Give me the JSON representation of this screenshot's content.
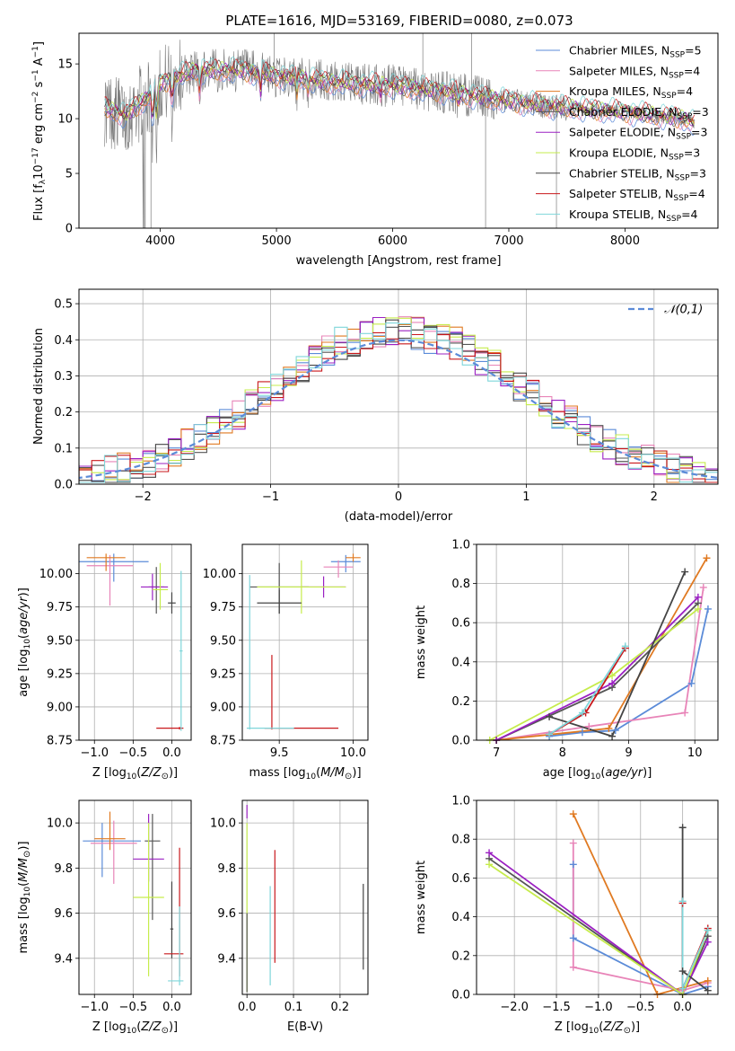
{
  "figure_title": "PLATE=1616, MJD=53169, FIBERID=0080, z=0.073",
  "model_colors": {
    "Chabrier MILES": "#5b8bd8",
    "Salpeter MILES": "#e884b8",
    "Kroupa MILES": "#e07a22",
    "Chabrier ELODIE": "#555555",
    "Salpeter ELODIE": "#9b20c2",
    "Kroupa ELODIE": "#c6ec4c",
    "Chabrier STELIB": "#444444",
    "Salpeter STELIB": "#c9181c",
    "Kroupa STELIB": "#7fd6da",
    "data": "#7a7a7a"
  },
  "chart_data": [
    {
      "id": "spectrum",
      "type": "line",
      "xlabel": "wavelength [Angstrom, rest frame]",
      "ylabel": "Flux [f_λ 10^-17 erg cm^-2 s^-1 A^-1]",
      "xlim": [
        3300,
        8800
      ],
      "ylim": [
        0,
        17.8
      ],
      "xticks": [
        4000,
        5000,
        6000,
        7000,
        8000
      ],
      "yticks": [
        0,
        5,
        10,
        15
      ],
      "grid": false,
      "legend_position": "top-right",
      "legend": [
        {
          "model": "Chabrier MILES",
          "nssp": "5"
        },
        {
          "model": "Salpeter MILES",
          "nssp": "4"
        },
        {
          "model": "Kroupa MILES",
          "nssp": "4"
        },
        {
          "model": "Chabrier ELODIE",
          "nssp": "3"
        },
        {
          "model": "Salpeter ELODIE",
          "nssp": "3"
        },
        {
          "model": "Kroupa ELODIE",
          "nssp": "3"
        },
        {
          "model": "Chabrier STELIB",
          "nssp": "3"
        },
        {
          "model": "Salpeter STELIB",
          "nssp": "4"
        },
        {
          "model": "Kroupa STELIB",
          "nssp": "4"
        }
      ],
      "continuum_points": [
        [
          3500,
          11.0
        ],
        [
          3700,
          10.3
        ],
        [
          3900,
          12.0
        ],
        [
          4000,
          13.2
        ],
        [
          4300,
          14.4
        ],
        [
          4700,
          14.4
        ],
        [
          5000,
          13.9
        ],
        [
          5500,
          13.3
        ],
        [
          6000,
          13.0
        ],
        [
          6500,
          12.4
        ],
        [
          6800,
          11.9
        ],
        [
          7200,
          11.3
        ],
        [
          7500,
          11.0
        ],
        [
          8000,
          10.6
        ],
        [
          8500,
          10.0
        ],
        [
          8600,
          9.5
        ]
      ]
    },
    {
      "id": "residual-distribution",
      "type": "line",
      "xlabel": "(data-model)/error",
      "ylabel": "Normed distribution",
      "xlim": [
        -2.5,
        2.5
      ],
      "ylim": [
        0,
        0.54
      ],
      "xticks": [
        -2,
        -1,
        0,
        1,
        2
      ],
      "yticks": [
        0.0,
        0.1,
        0.2,
        0.3,
        0.4,
        0.5
      ],
      "grid": true,
      "legend_position": "top-right",
      "legend_label": "𝒩(0,1)",
      "normal_curve_color": "#5b8bd8"
    },
    {
      "id": "age-vs-Z",
      "type": "scatter",
      "xlabel": "Z [log10(Z/Z⊙)]",
      "ylabel": "age [log10(age/yr)]",
      "xlim": [
        -1.2,
        0.25
      ],
      "ylim": [
        8.75,
        10.22
      ],
      "xticks": [
        -1.0,
        -0.5,
        0.0
      ],
      "yticks": [
        8.75,
        9.0,
        9.25,
        9.5,
        9.75,
        10.0
      ],
      "grid": true,
      "points": [
        {
          "model": "Chabrier MILES",
          "x": -0.75,
          "y": 10.09,
          "xerr": [
            0.5,
            0.45
          ],
          "yerr": [
            0.15,
            0.06
          ]
        },
        {
          "model": "Salpeter MILES",
          "x": -0.8,
          "y": 10.06,
          "xerr": [
            0.3,
            0.3
          ],
          "yerr": [
            0.3,
            0.08
          ]
        },
        {
          "model": "Kroupa MILES",
          "x": -0.85,
          "y": 10.12,
          "xerr": [
            0.25,
            0.25
          ],
          "yerr": [
            0.1,
            0.03
          ]
        },
        {
          "model": "Chabrier ELODIE",
          "x": -0.2,
          "y": 9.9,
          "xerr": [
            0.1,
            0.1
          ],
          "yerr": [
            0.2,
            0.15
          ]
        },
        {
          "model": "Salpeter ELODIE",
          "x": -0.25,
          "y": 9.9,
          "xerr": [
            0.15,
            0.2
          ],
          "yerr": [
            0.1,
            0.1
          ]
        },
        {
          "model": "Kroupa ELODIE",
          "x": -0.15,
          "y": 9.88,
          "xerr": [
            0.1,
            0.1
          ],
          "yerr": [
            0.15,
            0.2
          ]
        },
        {
          "model": "Chabrier STELIB",
          "x": 0.0,
          "y": 9.78,
          "xerr": [
            0.05,
            0.05
          ],
          "yerr": [
            0.08,
            0.08
          ]
        },
        {
          "model": "Salpeter STELIB",
          "x": 0.1,
          "y": 8.84,
          "xerr": [
            0.3,
            0.05
          ],
          "yerr": [
            0.01,
            0.01
          ]
        },
        {
          "model": "Kroupa STELIB",
          "x": 0.12,
          "y": 9.42,
          "xerr": [
            0.02,
            0.02
          ],
          "yerr": [
            0.6,
            0.6
          ]
        }
      ]
    },
    {
      "id": "age-vs-mass",
      "type": "scatter",
      "xlabel": "mass [log10(M/M⊙)]",
      "ylabel": "",
      "xlim": [
        9.25,
        10.1
      ],
      "ylim": [
        8.75,
        10.22
      ],
      "xticks": [
        9.5,
        10.0
      ],
      "yticks": [
        8.75,
        9.0,
        9.25,
        9.5,
        9.75,
        10.0
      ],
      "grid": true,
      "points": [
        {
          "model": "Chabrier MILES",
          "x": 9.95,
          "y": 10.09,
          "xerr": [
            0.1,
            0.1
          ],
          "yerr": [
            0.08,
            0.05
          ]
        },
        {
          "model": "Salpeter MILES",
          "x": 9.9,
          "y": 10.05,
          "xerr": [
            0.1,
            0.1
          ],
          "yerr": [
            0.08,
            0.05
          ]
        },
        {
          "model": "Kroupa MILES",
          "x": 10.0,
          "y": 10.12,
          "xerr": [
            0.05,
            0.05
          ],
          "yerr": [
            0.03,
            0.03
          ]
        },
        {
          "model": "Chabrier ELODIE",
          "x": 9.5,
          "y": 9.9,
          "xerr": [
            0.2,
            0.2
          ],
          "yerr": [
            0.2,
            0.18
          ]
        },
        {
          "model": "Salpeter ELODIE",
          "x": 9.8,
          "y": 9.9,
          "xerr": [
            0.15,
            0.15
          ],
          "yerr": [
            0.08,
            0.08
          ]
        },
        {
          "model": "Kroupa ELODIE",
          "x": 9.65,
          "y": 9.9,
          "xerr": [
            0.3,
            0.3
          ],
          "yerr": [
            0.2,
            0.2
          ]
        },
        {
          "model": "Chabrier STELIB",
          "x": 9.5,
          "y": 9.78,
          "xerr": [
            0.15,
            0.15
          ],
          "yerr": [
            0.08,
            0.1
          ]
        },
        {
          "model": "Salpeter STELIB",
          "x": 9.45,
          "y": 8.84,
          "xerr": [
            0.05,
            0.45
          ],
          "yerr": [
            0.01,
            0.55
          ]
        },
        {
          "model": "Kroupa STELIB",
          "x": 9.3,
          "y": 8.84,
          "xerr": [
            0.02,
            0.3
          ],
          "yerr": [
            0.01,
            1.15
          ]
        }
      ]
    },
    {
      "id": "mass-weight-vs-age",
      "type": "line",
      "xlabel": "age [log10(age/yr)]",
      "ylabel": "mass weight",
      "xlim": [
        6.7,
        10.35
      ],
      "ylim": [
        0,
        1.0
      ],
      "xticks": [
        7,
        8,
        9,
        10
      ],
      "yticks": [
        0.0,
        0.2,
        0.4,
        0.6,
        0.8,
        1.0
      ],
      "grid": true,
      "series": [
        {
          "model": "Chabrier MILES",
          "points": [
            [
              7.8,
              0.02
            ],
            [
              8.3,
              0.04
            ],
            [
              8.8,
              0.05
            ],
            [
              9.95,
              0.29
            ],
            [
              10.2,
              0.67
            ]
          ]
        },
        {
          "model": "Salpeter MILES",
          "points": [
            [
              7.0,
              0.0
            ],
            [
              8.4,
              0.07
            ],
            [
              9.85,
              0.14
            ],
            [
              10.13,
              0.78
            ]
          ]
        },
        {
          "model": "Kroupa MILES",
          "points": [
            [
              7.0,
              0.0
            ],
            [
              8.7,
              0.06
            ],
            [
              10.18,
              0.93
            ]
          ]
        },
        {
          "model": "Chabrier ELODIE",
          "points": [
            [
              7.0,
              0.0
            ],
            [
              8.75,
              0.27
            ],
            [
              10.05,
              0.7
            ]
          ]
        },
        {
          "model": "Salpeter ELODIE",
          "points": [
            [
              7.0,
              0.0
            ],
            [
              8.75,
              0.29
            ],
            [
              10.05,
              0.73
            ]
          ]
        },
        {
          "model": "Kroupa ELODIE",
          "points": [
            [
              6.9,
              0.0
            ],
            [
              8.75,
              0.33
            ],
            [
              10.05,
              0.67
            ]
          ]
        },
        {
          "model": "Chabrier STELIB",
          "points": [
            [
              7.8,
              0.12
            ],
            [
              8.75,
              0.02
            ],
            [
              9.85,
              0.86
            ]
          ]
        },
        {
          "model": "Salpeter STELIB",
          "points": [
            [
              7.8,
              0.03
            ],
            [
              8.35,
              0.14
            ],
            [
              8.95,
              0.47
            ]
          ]
        },
        {
          "model": "Kroupa STELIB",
          "points": [
            [
              7.8,
              0.03
            ],
            [
              8.3,
              0.14
            ],
            [
              8.95,
              0.48
            ]
          ]
        }
      ]
    },
    {
      "id": "mass-vs-Z",
      "type": "scatter",
      "xlabel": "Z [log10(Z/Z⊙)]",
      "ylabel": "mass [log10(M/M⊙)]",
      "xlim": [
        -1.2,
        0.25
      ],
      "ylim": [
        9.24,
        10.1
      ],
      "xticks": [
        -1.0,
        -0.5,
        0.0
      ],
      "yticks": [
        9.4,
        9.6,
        9.8,
        10.0
      ],
      "grid": true,
      "points": [
        {
          "model": "Chabrier MILES",
          "x": -0.9,
          "y": 9.92,
          "xerr": [
            0.25,
            0.5
          ],
          "yerr": [
            0.16,
            0.08
          ]
        },
        {
          "model": "Salpeter MILES",
          "x": -0.75,
          "y": 9.91,
          "xerr": [
            0.3,
            0.3
          ],
          "yerr": [
            0.18,
            0.1
          ]
        },
        {
          "model": "Kroupa MILES",
          "x": -0.8,
          "y": 9.93,
          "xerr": [
            0.2,
            0.2
          ],
          "yerr": [
            0.05,
            0.12
          ]
        },
        {
          "model": "Chabrier ELODIE",
          "x": -0.25,
          "y": 9.92,
          "xerr": [
            0.1,
            0.1
          ],
          "yerr": [
            0.35,
            0.12
          ]
        },
        {
          "model": "Salpeter ELODIE",
          "x": -0.3,
          "y": 9.84,
          "xerr": [
            0.2,
            0.2
          ],
          "yerr": [
            0.1,
            0.2
          ]
        },
        {
          "model": "Kroupa ELODIE",
          "x": -0.3,
          "y": 9.67,
          "xerr": [
            0.2,
            0.2
          ],
          "yerr": [
            0.35,
            0.33
          ]
        },
        {
          "model": "Chabrier STELIB",
          "x": 0.0,
          "y": 9.53,
          "xerr": [
            0.02,
            0.02
          ],
          "yerr": [
            0.13,
            0.21
          ]
        },
        {
          "model": "Salpeter STELIB",
          "x": 0.1,
          "y": 9.42,
          "xerr": [
            0.2,
            0.05
          ],
          "yerr": [
            0.1,
            0.47
          ]
        },
        {
          "model": "Kroupa STELIB",
          "x": 0.1,
          "y": 9.3,
          "xerr": [
            0.15,
            0.05
          ],
          "yerr": [
            0.02,
            0.33
          ]
        }
      ]
    },
    {
      "id": "mass-vs-EBV",
      "type": "scatter",
      "xlabel": "E(B-V)",
      "ylabel": "",
      "xlim": [
        -0.01,
        0.26
      ],
      "ylim": [
        9.24,
        10.1
      ],
      "xticks": [
        0.0,
        0.1,
        0.2
      ],
      "yticks": [
        9.4,
        9.6,
        9.8,
        10.0
      ],
      "grid": true,
      "points": [
        {
          "model": "Salpeter ELODIE",
          "x": 0.0,
          "y": 10.05,
          "xerr": [
            0,
            0
          ],
          "yerr": [
            0.03,
            0.03
          ]
        },
        {
          "model": "Kroupa ELODIE",
          "x": 0.0,
          "y": 9.55,
          "xerr": [
            0,
            0
          ],
          "yerr": [
            0.3,
            0.45
          ]
        },
        {
          "model": "Chabrier ELODIE",
          "x": 0.0,
          "y": 9.3,
          "xerr": [
            0,
            0
          ],
          "yerr": [
            0.05,
            0.3
          ]
        },
        {
          "model": "Kroupa STELIB",
          "x": 0.05,
          "y": 9.5,
          "xerr": [
            0,
            0
          ],
          "yerr": [
            0.22,
            0.22
          ]
        },
        {
          "model": "Salpeter STELIB",
          "x": 0.06,
          "y": 9.63,
          "xerr": [
            0,
            0
          ],
          "yerr": [
            0.25,
            0.25
          ]
        },
        {
          "model": "Chabrier STELIB",
          "x": 0.25,
          "y": 9.54,
          "xerr": [
            0,
            0
          ],
          "yerr": [
            0.19,
            0.19
          ]
        }
      ]
    },
    {
      "id": "mass-weight-vs-Z",
      "type": "line",
      "xlabel": "Z [log10(Z/Z⊙)]",
      "ylabel": "mass weight",
      "xlim": [
        -2.45,
        0.42
      ],
      "ylim": [
        0,
        1.0
      ],
      "xticks": [
        -2.0,
        -1.5,
        -1.0,
        -0.5,
        0.0
      ],
      "yticks": [
        0.0,
        0.2,
        0.4,
        0.6,
        0.8,
        1.0
      ],
      "grid": true,
      "series": [
        {
          "model": "Chabrier MILES",
          "points": [
            [
              -1.3,
              0.67
            ],
            [
              -1.3,
              0.29
            ],
            [
              0.0,
              0.0
            ],
            [
              0.3,
              0.04
            ]
          ]
        },
        {
          "model": "Salpeter MILES",
          "points": [
            [
              -1.3,
              0.78
            ],
            [
              -1.3,
              0.14
            ],
            [
              0.0,
              0.02
            ],
            [
              0.3,
              0.06
            ]
          ]
        },
        {
          "model": "Kroupa MILES",
          "points": [
            [
              -1.3,
              0.93
            ],
            [
              -0.3,
              0.0
            ],
            [
              0.3,
              0.07
            ]
          ]
        },
        {
          "model": "Chabrier ELODIE",
          "points": [
            [
              -2.3,
              0.7
            ],
            [
              0.0,
              0.0
            ],
            [
              0.3,
              0.3
            ]
          ]
        },
        {
          "model": "Salpeter ELODIE",
          "points": [
            [
              -2.3,
              0.73
            ],
            [
              0.0,
              0.0
            ],
            [
              0.3,
              0.27
            ]
          ]
        },
        {
          "model": "Kroupa ELODIE",
          "points": [
            [
              -2.3,
              0.67
            ],
            [
              0.0,
              0.0
            ],
            [
              0.3,
              0.33
            ]
          ]
        },
        {
          "model": "Chabrier STELIB",
          "points": [
            [
              0.0,
              0.86
            ],
            [
              0.0,
              0.12
            ],
            [
              0.3,
              0.02
            ]
          ]
        },
        {
          "model": "Salpeter STELIB",
          "points": [
            [
              0.0,
              0.47
            ],
            [
              0.0,
              0.03
            ],
            [
              0.3,
              0.34
            ]
          ]
        },
        {
          "model": "Kroupa STELIB",
          "points": [
            [
              0.0,
              0.48
            ],
            [
              0.0,
              0.03
            ],
            [
              0.3,
              0.33
            ]
          ]
        }
      ]
    }
  ]
}
